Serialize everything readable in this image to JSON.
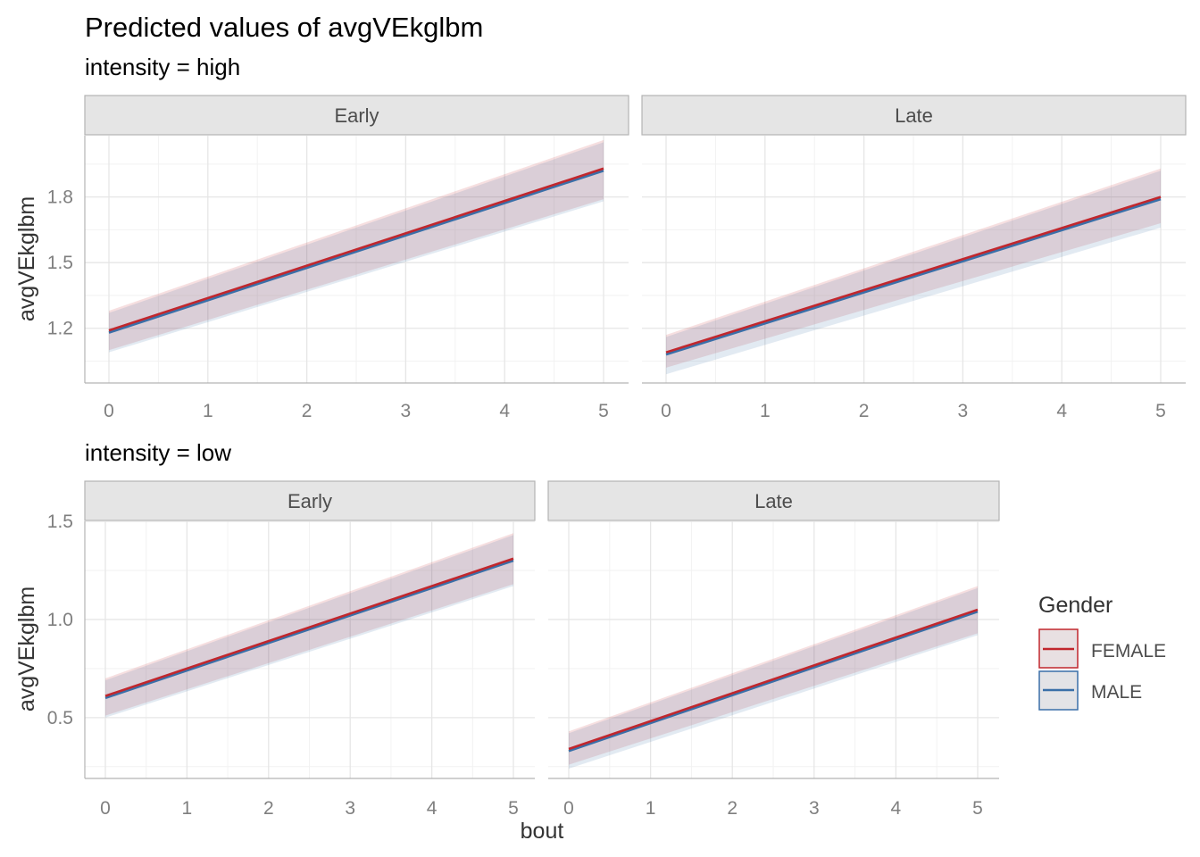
{
  "title": "Predicted values of avgVEkglbm",
  "chart_data": {
    "type": "line",
    "x_variable": "bout",
    "xlabel": "bout",
    "ylabel": "avgVEkglbm",
    "xticks": [
      0,
      1,
      2,
      3,
      4,
      5
    ],
    "legend": {
      "title": "Gender",
      "position": "right",
      "entries": [
        {
          "label": "FEMALE",
          "color": "#c1272d"
        },
        {
          "label": "MALE",
          "color": "#3a6fa8"
        }
      ]
    },
    "panel_groups": [
      {
        "label": "intensity = high",
        "yticks": [
          1.2,
          1.5,
          1.8
        ],
        "ylim": [
          0.95,
          2.08
        ],
        "facets": [
          {
            "label": "Early",
            "series": [
              {
                "name": "FEMALE",
                "x": [
                  0,
                  5
                ],
                "y": [
                  1.19,
                  1.93
                ],
                "lower": [
                  1.1,
                  1.79
                ],
                "upper": [
                  1.28,
                  2.06
                ]
              },
              {
                "name": "MALE",
                "x": [
                  0,
                  5
                ],
                "y": [
                  1.18,
                  1.92
                ],
                "lower": [
                  1.09,
                  1.78
                ],
                "upper": [
                  1.27,
                  2.05
                ]
              }
            ]
          },
          {
            "label": "Late",
            "series": [
              {
                "name": "FEMALE",
                "x": [
                  0,
                  5
                ],
                "y": [
                  1.09,
                  1.8
                ],
                "lower": [
                  1.02,
                  1.68
                ],
                "upper": [
                  1.17,
                  1.93
                ]
              },
              {
                "name": "MALE",
                "x": [
                  0,
                  5
                ],
                "y": [
                  1.08,
                  1.79
                ],
                "lower": [
                  0.99,
                  1.66
                ],
                "upper": [
                  1.16,
                  1.92
                ]
              }
            ]
          }
        ]
      },
      {
        "label": "intensity = low",
        "yticks": [
          0.5,
          1.0,
          1.5
        ],
        "ylim": [
          0.19,
          1.5
        ],
        "facets": [
          {
            "label": "Early",
            "series": [
              {
                "name": "FEMALE",
                "x": [
                  0,
                  5
                ],
                "y": [
                  0.61,
                  1.31
                ],
                "lower": [
                  0.51,
                  1.18
                ],
                "upper": [
                  0.7,
                  1.44
                ]
              },
              {
                "name": "MALE",
                "x": [
                  0,
                  5
                ],
                "y": [
                  0.6,
                  1.3
                ],
                "lower": [
                  0.5,
                  1.17
                ],
                "upper": [
                  0.69,
                  1.43
                ]
              }
            ]
          },
          {
            "label": "Late",
            "series": [
              {
                "name": "FEMALE",
                "x": [
                  0,
                  5
                ],
                "y": [
                  0.34,
                  1.05
                ],
                "lower": [
                  0.26,
                  0.93
                ],
                "upper": [
                  0.43,
                  1.17
                ]
              },
              {
                "name": "MALE",
                "x": [
                  0,
                  5
                ],
                "y": [
                  0.33,
                  1.04
                ],
                "lower": [
                  0.24,
                  0.92
                ],
                "upper": [
                  0.42,
                  1.16
                ]
              }
            ]
          }
        ]
      }
    ]
  }
}
